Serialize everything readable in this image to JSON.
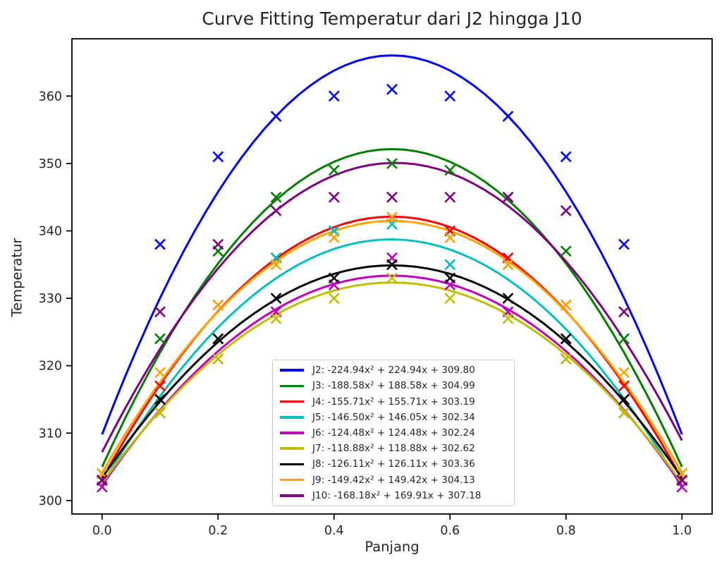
{
  "chart_data": {
    "type": "scatter+line",
    "title": "Curve Fitting Temperatur dari J2 hingga J10",
    "xlabel": "Panjang",
    "ylabel": "Temperatur",
    "xlim": [
      -0.052,
      1.052
    ],
    "ylim": [
      298.0,
      368.5
    ],
    "xticks": [
      0.0,
      0.2,
      0.4,
      0.6,
      0.8,
      1.0
    ],
    "xtick_labels": [
      "0.0",
      "0.2",
      "0.4",
      "0.6",
      "0.8",
      "1.0"
    ],
    "yticks": [
      300,
      310,
      320,
      330,
      340,
      350,
      360
    ],
    "ytick_labels": [
      "300",
      "310",
      "320",
      "330",
      "340",
      "350",
      "360"
    ],
    "grid": false,
    "legend_position": "inside-bottom-center",
    "x": [
      0.0,
      0.1,
      0.2,
      0.3,
      0.4,
      0.5,
      0.6,
      0.7,
      0.8,
      0.9,
      1.0
    ],
    "series": [
      {
        "name": "J2",
        "color": "#0000ff",
        "label": "J2: -224.94x² + 224.94x + 309.80",
        "coeffs": [
          -224.94,
          224.94,
          309.8
        ],
        "y": [
          303,
          338,
          351,
          357,
          360,
          361,
          360,
          357,
          351,
          338,
          303
        ]
      },
      {
        "name": "J3",
        "color": "#008000",
        "label": "J3: -188.58x² + 188.58x + 304.99",
        "coeffs": [
          -188.58,
          188.58,
          304.99
        ],
        "y": [
          304,
          324,
          337,
          345,
          349,
          350,
          349,
          345,
          337,
          324,
          304
        ]
      },
      {
        "name": "J4",
        "color": "#ff0000",
        "label": "J4: -155.71x² + 155.71x + 303.19",
        "coeffs": [
          -155.71,
          155.71,
          303.19
        ],
        "y": [
          303,
          317,
          329,
          336,
          340,
          342,
          340,
          336,
          329,
          317,
          303
        ]
      },
      {
        "name": "J5",
        "color": "#00bfbf",
        "label": "J5: -146.50x² + 146.05x + 302.34",
        "coeffs": [
          -146.5,
          146.05,
          302.34
        ],
        "y": [
          302,
          315,
          324,
          336,
          340,
          341,
          335,
          335,
          324,
          315,
          302
        ]
      },
      {
        "name": "J6",
        "color": "#bf00bf",
        "label": "J6: -124.48x² + 124.48x + 302.24",
        "coeffs": [
          -124.48,
          124.48,
          302.24
        ],
        "y": [
          302,
          313,
          321,
          328,
          332,
          336,
          332,
          328,
          321,
          313,
          302
        ]
      },
      {
        "name": "J7",
        "color": "#bfbf00",
        "label": "J7: -118.88x² + 118.88x + 302.62",
        "coeffs": [
          -118.88,
          118.88,
          302.62
        ],
        "y": [
          303,
          313,
          321,
          327,
          330,
          333,
          330,
          327,
          321,
          313,
          303
        ]
      },
      {
        "name": "J8",
        "color": "#000000",
        "label": "J8: -126.11x² + 126.11x + 303.36",
        "coeffs": [
          -126.11,
          126.11,
          303.36
        ],
        "y": [
          303,
          315,
          324,
          330,
          333,
          335,
          333,
          330,
          324,
          315,
          303
        ]
      },
      {
        "name": "J9",
        "color": "#ffa500",
        "label": "J9: -149.42x² + 149.42x + 304.13",
        "coeffs": [
          -149.42,
          149.42,
          304.13
        ],
        "y": [
          304,
          319,
          329,
          335,
          339,
          342,
          339,
          335,
          329,
          319,
          304
        ]
      },
      {
        "name": "J10",
        "color": "#800080",
        "label": "J10: -168.18x² + 169.91x + 307.18",
        "coeffs": [
          -168.18,
          169.91,
          307.18
        ],
        "y": [
          303,
          328,
          338,
          343,
          345,
          345,
          345,
          345,
          343,
          328,
          303
        ]
      }
    ],
    "style": {
      "axis_color": "#000000",
      "tick_label_color": "#262626",
      "line_width": 3,
      "marker": "x"
    }
  }
}
